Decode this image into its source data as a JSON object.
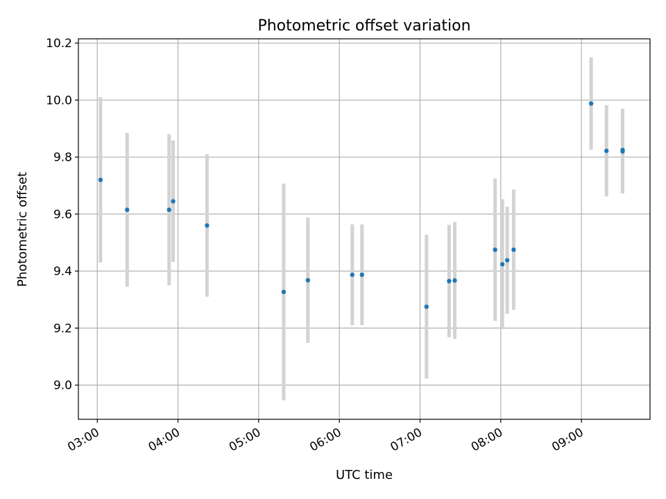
{
  "chart_data": {
    "type": "scatter",
    "title": "Photometric offset variation",
    "xlabel": "UTC time",
    "ylabel": "Photometric offset",
    "x_unit": "hours UTC",
    "xlim": [
      2.766,
      9.85
    ],
    "ylim": [
      8.88,
      10.215
    ],
    "x_ticks": [
      {
        "value": 3,
        "label": "03:00"
      },
      {
        "value": 4,
        "label": "04:00"
      },
      {
        "value": 5,
        "label": "05:00"
      },
      {
        "value": 6,
        "label": "06:00"
      },
      {
        "value": 7,
        "label": "07:00"
      },
      {
        "value": 8,
        "label": "08:00"
      },
      {
        "value": 9,
        "label": "09:00"
      }
    ],
    "y_ticks": [
      {
        "value": 9.0,
        "label": "9.0"
      },
      {
        "value": 9.2,
        "label": "9.2"
      },
      {
        "value": 9.4,
        "label": "9.4"
      },
      {
        "value": 9.6,
        "label": "9.6"
      },
      {
        "value": 9.8,
        "label": "9.8"
      },
      {
        "value": 10.0,
        "label": "10.0"
      },
      {
        "value": 10.2,
        "label": "10.2"
      }
    ],
    "grid": true,
    "point_color": "#1f77b4",
    "errorbar_color": "#d3d3d3",
    "points": [
      {
        "x": 3.04,
        "y": 9.72,
        "err": 0.29
      },
      {
        "x": 3.37,
        "y": 9.615,
        "err": 0.27
      },
      {
        "x": 3.89,
        "y": 9.615,
        "err": 0.265
      },
      {
        "x": 3.94,
        "y": 9.645,
        "err": 0.213
      },
      {
        "x": 4.36,
        "y": 9.56,
        "err": 0.25
      },
      {
        "x": 5.31,
        "y": 9.327,
        "err": 0.38
      },
      {
        "x": 5.61,
        "y": 9.368,
        "err": 0.22
      },
      {
        "x": 6.16,
        "y": 9.387,
        "err": 0.177
      },
      {
        "x": 6.28,
        "y": 9.387,
        "err": 0.177
      },
      {
        "x": 7.08,
        "y": 9.275,
        "err": 0.252
      },
      {
        "x": 7.36,
        "y": 9.365,
        "err": 0.197
      },
      {
        "x": 7.43,
        "y": 9.367,
        "err": 0.205
      },
      {
        "x": 7.93,
        "y": 9.475,
        "err": 0.25
      },
      {
        "x": 8.02,
        "y": 9.424,
        "err": 0.228
      },
      {
        "x": 8.08,
        "y": 9.438,
        "err": 0.188
      },
      {
        "x": 8.16,
        "y": 9.475,
        "err": 0.211
      },
      {
        "x": 9.12,
        "y": 9.988,
        "err": 0.162
      },
      {
        "x": 9.31,
        "y": 9.822,
        "err": 0.16
      },
      {
        "x": 9.51,
        "y": 9.825,
        "err": 0.145
      },
      {
        "x": 9.51,
        "y": 9.82,
        "err": 0.148
      }
    ]
  }
}
